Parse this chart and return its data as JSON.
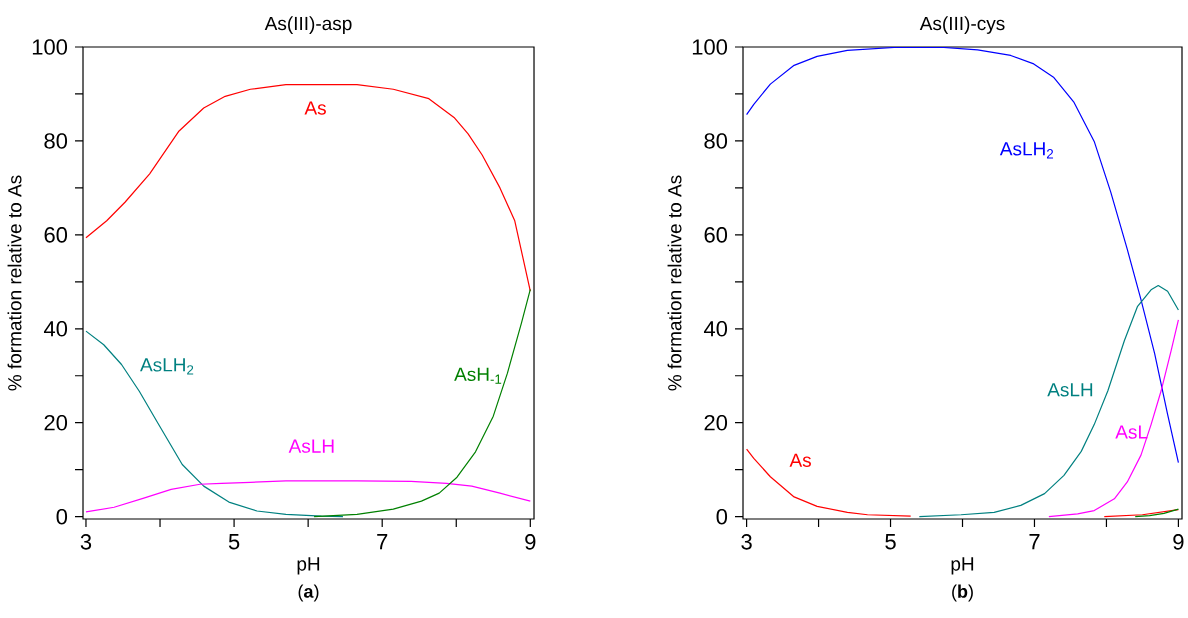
{
  "chart_data": [
    {
      "type": "line",
      "title": "As(III)-asp",
      "xlabel": "pH",
      "ylabel": "% formation relative to As",
      "annotations": [
        "(**a**)"
      ],
      "xlim": [
        2.96,
        9.05
      ],
      "ylim": [
        -0.5,
        100
      ],
      "xticks": [
        3,
        {
          "value": 4,
          "label": null
        },
        5,
        {
          "value": 6,
          "label": null
        },
        7,
        {
          "value": 8,
          "label": null
        },
        9
      ],
      "yticks": [
        0,
        {
          "value": 10,
          "label": null
        },
        20,
        {
          "value": 30,
          "label": null
        },
        40,
        {
          "value": 50,
          "label": null
        },
        60,
        {
          "value": 70,
          "label": null
        },
        80,
        {
          "value": 90,
          "label": null
        },
        100
      ],
      "series": [
        {
          "name": "As",
          "color": "#ff0000",
          "x": [
            3,
            3.28,
            3.53,
            3.86,
            4.25,
            4.59,
            4.88,
            5.22,
            5.7,
            6.18,
            6.66,
            7.15,
            7.63,
            7.97,
            8.16,
            8.35,
            8.59,
            8.79,
            9
          ],
          "values": [
            59.4,
            63,
            67,
            73,
            82,
            87,
            89.5,
            91,
            92,
            92,
            92,
            91,
            89,
            85,
            81.5,
            77,
            70,
            63,
            48
          ]
        },
        {
          "name": "AsLH$_{2}$",
          "color": "#008080",
          "x": [
            3,
            3.24,
            3.48,
            3.72,
            3.96,
            4.3,
            4.59,
            4.93,
            5.31,
            5.7,
            6.18,
            6.47
          ],
          "values": [
            39.5,
            36.6,
            32.4,
            26.7,
            20.2,
            11.1,
            6.5,
            3.1,
            1.2,
            0.5,
            0.1,
            0
          ]
        },
        {
          "name": "AsLH",
          "color": "#ff00ff",
          "x": [
            3,
            3.38,
            3.77,
            4.15,
            4.54,
            4.83,
            5.22,
            5.7,
            6.66,
            7.39,
            7.87,
            8.21,
            8.59,
            9
          ],
          "values": [
            1,
            2,
            3.9,
            5.8,
            6.9,
            7.1,
            7.3,
            7.6,
            7.6,
            7.5,
            7.1,
            6.5,
            5,
            3.3
          ]
        },
        {
          "name": "AsH$_{-1}$",
          "color": "#008000",
          "x": [
            6.08,
            6.66,
            7.15,
            7.53,
            7.77,
            8.01,
            8.26,
            8.5,
            8.69,
            8.88,
            9
          ],
          "values": [
            0,
            0.5,
            1.6,
            3.3,
            5,
            8.4,
            13.8,
            21.4,
            30.5,
            41.2,
            48.4
          ]
        }
      ]
    },
    {
      "type": "line",
      "title": "As(III)-cys",
      "xlabel": "pH",
      "ylabel": "% formation relative to As",
      "annotations": [
        "(**b**)"
      ],
      "xlim": [
        2.95,
        9.05
      ],
      "ylim": [
        -0.5,
        100
      ],
      "xticks": [
        3,
        {
          "value": 4,
          "label": null
        },
        5,
        {
          "value": 6,
          "label": null
        },
        7,
        {
          "value": 8,
          "label": null
        },
        9
      ],
      "yticks": [
        0,
        {
          "value": 10,
          "label": null
        },
        20,
        {
          "value": 30,
          "label": null
        },
        40,
        {
          "value": 50,
          "label": null
        },
        60,
        {
          "value": 70,
          "label": null
        },
        80,
        {
          "value": 90,
          "label": null
        },
        100
      ],
      "series": [
        {
          "name": "AsLH$_{2}$",
          "color": "#0000ff",
          "x": [
            3,
            3.1,
            3.33,
            3.66,
            3.98,
            4.4,
            5.05,
            5.74,
            6.21,
            6.67,
            6.99,
            7.27,
            7.55,
            7.83,
            8.06,
            8.29,
            8.48,
            8.67,
            8.85,
            9
          ],
          "values": [
            85.6,
            87.8,
            92.1,
            96.1,
            98,
            99.3,
            99.9,
            99.9,
            99.4,
            98.2,
            96.4,
            93.5,
            88.2,
            79.9,
            69.1,
            56.9,
            46.2,
            34.7,
            21.8,
            11.5
          ]
        },
        {
          "name": "AsLH",
          "color": "#008080",
          "x": [
            5.4,
            5.98,
            6.44,
            6.81,
            7.14,
            7.41,
            7.65,
            7.83,
            8.02,
            8.25,
            8.43,
            8.62,
            8.72,
            8.85,
            9
          ],
          "values": [
            0,
            0.4,
            0.9,
            2.4,
            4.9,
            8.8,
            13.9,
            19.6,
            26.8,
            37.5,
            44.7,
            48.3,
            49.2,
            48,
            44
          ]
        },
        {
          "name": "AsL",
          "color": "#ff00ff",
          "x": [
            7.2,
            7.6,
            7.83,
            8.11,
            8.29,
            8.48,
            8.62,
            8.76,
            8.9,
            9
          ],
          "values": [
            0,
            0.6,
            1.3,
            3.8,
            7.4,
            13.1,
            19.6,
            26.8,
            35.4,
            41.9
          ]
        },
        {
          "name": "As",
          "color": "#ff0000",
          "x": [
            3,
            3.1,
            3.33,
            3.66,
            3.98,
            4.4,
            4.68,
            5.28,
            6.5,
            7.97,
            8.5,
            9
          ],
          "values": [
            14.4,
            12.4,
            8.5,
            4.2,
            2.2,
            0.9,
            0.4,
            0.1,
            null,
            0,
            0.4,
            1.5
          ]
        },
        {
          "color": "#008000",
          "x": [
            8.4,
            8.6,
            8.8,
            9
          ],
          "values": [
            0,
            0.2,
            0.7,
            1.6
          ]
        }
      ]
    }
  ]
}
